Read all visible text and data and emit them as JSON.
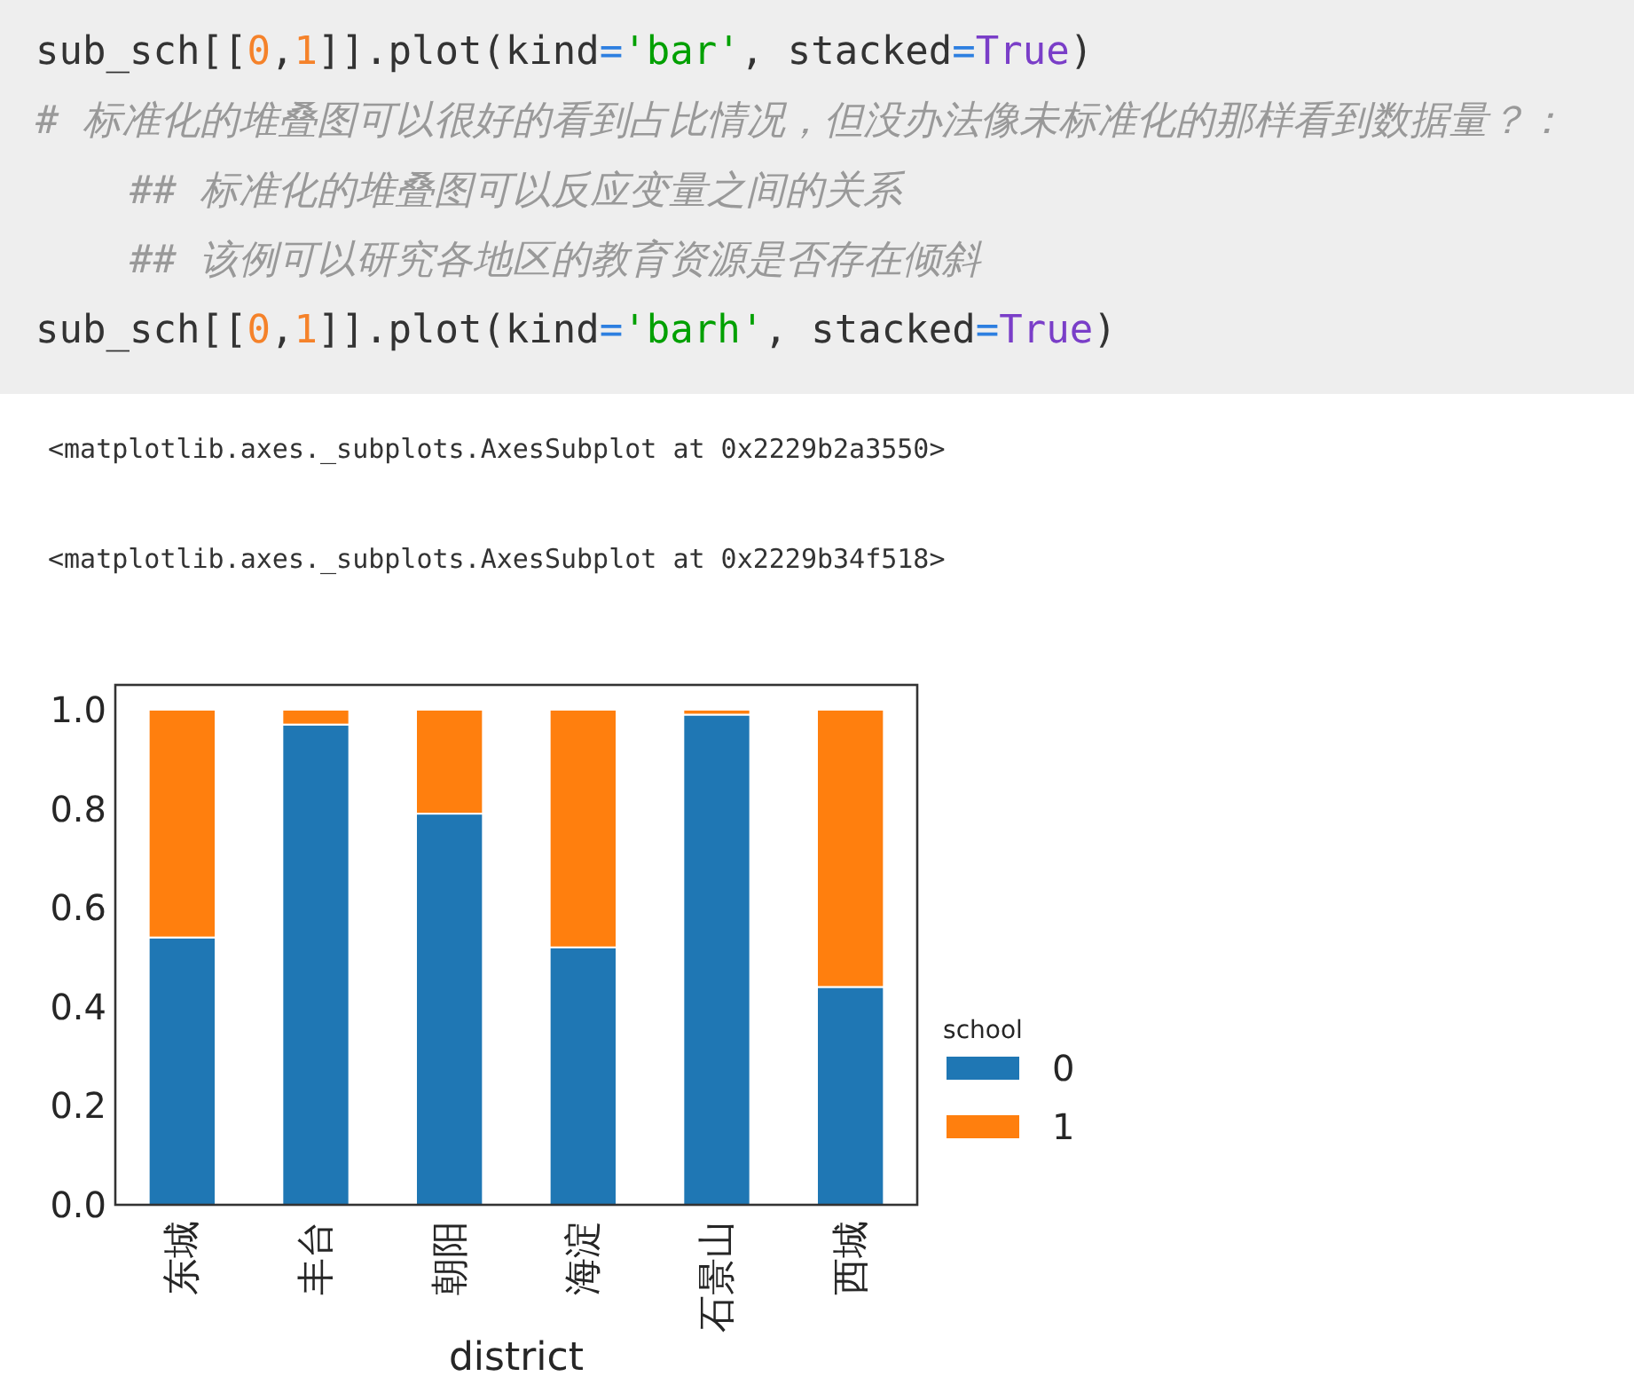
{
  "chart_data": {
    "type": "bar",
    "stacked": true,
    "categories": [
      "东城",
      "丰台",
      "朝阳",
      "海淀",
      "石景山",
      "西城"
    ],
    "series": [
      {
        "name": "0",
        "color": "#1f77b4",
        "values": [
          0.54,
          0.97,
          0.79,
          0.52,
          0.99,
          0.44
        ]
      },
      {
        "name": "1",
        "color": "#ff7f0e",
        "values": [
          0.46,
          0.03,
          0.21,
          0.48,
          0.01,
          0.56
        ]
      }
    ],
    "xlabel": "district",
    "legend_title": "school",
    "legend": "bottom right",
    "ylim": [
      0,
      1.05
    ],
    "yticks": [
      {
        "value": 0,
        "label": "0.0"
      },
      {
        "value": 0.2,
        "label": "0.2"
      },
      {
        "value": 0.4,
        "label": "0.4"
      },
      {
        "value": 0.6,
        "label": "0.6"
      },
      {
        "value": 0.8,
        "label": "0.8"
      },
      {
        "value": 1,
        "label": "1.0"
      }
    ],
    "annotations": [
      "sub_sch[[0,1]].plot(kind='bar', stacked=True)",
      "# 标准化的堆叠图可以很好的看到占比情况，但没办法像未标准化的那样看到数据量？：",
      "    ## 标准化的堆叠图可以反应变量之间的关系",
      "    ## 该例可以研究各地区的教育资源是否存在倾斜",
      "sub_sch[[0,1]].plot(kind='barh', stacked=True)",
      "<matplotlib.axes._subplots.AxesSubplot at 0x2229b2a3550>",
      "<matplotlib.axes._subplots.AxesSubplot at 0x2229b34f518>"
    ]
  }
}
